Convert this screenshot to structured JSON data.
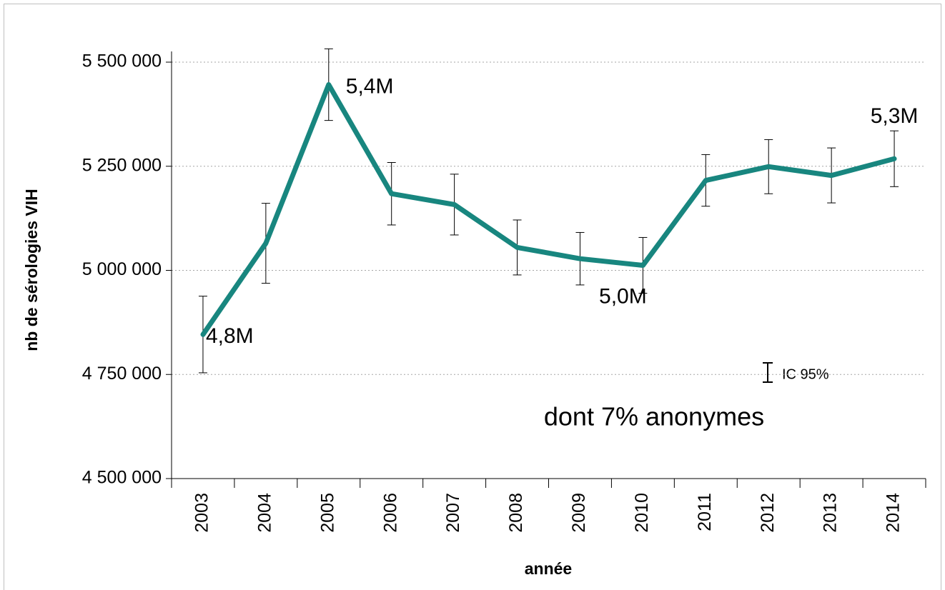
{
  "chart_data": {
    "type": "line",
    "x_label": "année",
    "y_label": "nb de sérologies VIH",
    "categories": [
      "2003",
      "2004",
      "2005",
      "2006",
      "2007",
      "2008",
      "2009",
      "2010",
      "2011",
      "2012",
      "2013",
      "2014"
    ],
    "series": [
      {
        "color": "#18867f",
        "values": [
          4846000,
          5065000,
          5446000,
          5184000,
          5158000,
          5055000,
          5028000,
          5012000,
          5216000,
          5249000,
          5228000,
          5268000
        ],
        "errors": [
          92000,
          96000,
          86000,
          75000,
          73000,
          66000,
          63000,
          67000,
          62000,
          65000,
          66000,
          67000
        ],
        "value_labels": [
          "4,8M",
          null,
          "5,4M",
          null,
          null,
          null,
          null,
          "5,0M",
          null,
          null,
          null,
          "5,3M"
        ]
      }
    ],
    "ylim": [
      4500000,
      5500000
    ],
    "yticks": [
      {
        "value": 4500000,
        "label": "4 500 000"
      },
      {
        "value": 4750000,
        "label": "4 750 000"
      },
      {
        "value": 5000000,
        "label": "5 000 000"
      },
      {
        "value": 5250000,
        "label": "5 250 000"
      },
      {
        "value": 5500000,
        "label": "5 500 000"
      }
    ],
    "grid": true,
    "error_legend": "IC 95%",
    "annotation": "dont 7% anonymes",
    "annotation_color": "#18867f"
  }
}
